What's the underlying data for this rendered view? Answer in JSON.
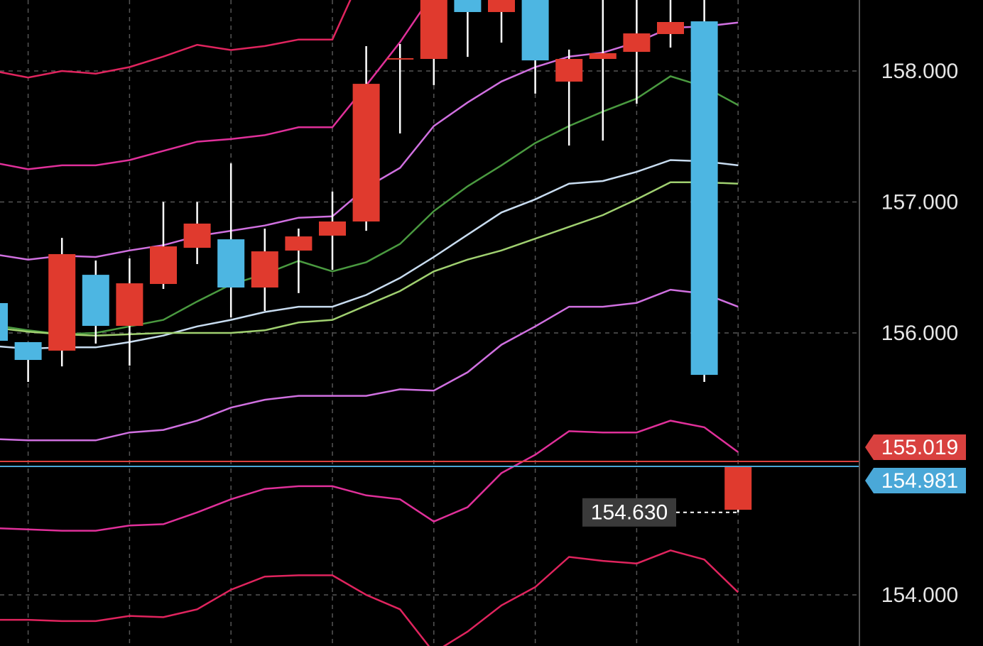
{
  "chart_data": {
    "type": "candlestick",
    "ylim": [
      153.61,
      158.542
    ],
    "yticks": [
      {
        "value": 154,
        "label": "154.000"
      },
      {
        "value": 156,
        "label": "156.000"
      },
      {
        "value": 157,
        "label": "157.000"
      },
      {
        "value": 158,
        "label": "158.000"
      }
    ],
    "grid": true,
    "up_color": "#e03a2e",
    "down_color": "#4db6e2",
    "open": [
      156.228,
      155.93,
      155.865,
      156.444,
      156.054,
      156.374,
      156.65,
      156.715,
      156.347,
      156.629,
      156.743,
      156.851,
      158.098,
      158.092,
      158.6,
      158.45,
      158.6,
      157.919,
      158.092,
      158.146,
      158.282,
      158.379,
      154.65
    ],
    "high": [
      156.25,
      155.93,
      156.726,
      156.553,
      156.569,
      157.0,
      157.0,
      157.295,
      156.797,
      156.797,
      157.079,
      158.19,
      158.206,
      158.7,
      158.7,
      158.65,
      158.65,
      158.163,
      158.6,
      158.6,
      158.6,
      158.6,
      154.981
    ],
    "low": [
      155.92,
      155.626,
      155.745,
      155.919,
      155.751,
      156.336,
      156.526,
      156.119,
      156.168,
      156.304,
      156.482,
      156.78,
      157.523,
      157.892,
      158.108,
      158.217,
      157.827,
      157.431,
      157.469,
      157.751,
      158.179,
      155.626,
      154.63
    ],
    "close": [
      155.94,
      155.794,
      156.602,
      156.054,
      156.379,
      156.661,
      156.835,
      156.347,
      156.623,
      156.737,
      156.851,
      157.902,
      158.098,
      158.6,
      158.45,
      158.6,
      158.081,
      158.092,
      158.136,
      158.287,
      158.374,
      155.68,
      154.981
    ],
    "lines": [
      {
        "color": "#e0245e",
        "values": [
          158.0,
          157.95,
          158.0,
          157.98,
          158.03,
          158.11,
          158.2,
          158.16,
          158.19,
          158.24,
          158.24,
          158.81,
          null,
          null,
          null,
          null,
          null,
          null,
          null,
          null,
          null,
          null,
          null
        ]
      },
      {
        "color": "#e0309a",
        "values": [
          157.3,
          157.25,
          157.28,
          157.28,
          157.32,
          157.39,
          157.46,
          157.48,
          157.51,
          157.57,
          157.57,
          157.89,
          158.22,
          158.6,
          null,
          null,
          null,
          null,
          null,
          null,
          null,
          null,
          null
        ]
      },
      {
        "color": "#d070e0",
        "values": [
          156.6,
          156.56,
          156.59,
          156.58,
          156.63,
          156.67,
          156.74,
          156.78,
          156.82,
          156.88,
          156.89,
          157.11,
          157.26,
          157.58,
          157.76,
          157.92,
          158.03,
          158.11,
          158.14,
          158.22,
          158.33,
          158.34,
          158.37
        ]
      },
      {
        "color": "#4a9a40",
        "values": [
          156.06,
          156.02,
          155.99,
          156.0,
          156.05,
          156.1,
          156.24,
          156.37,
          156.45,
          156.55,
          156.47,
          156.54,
          156.68,
          156.93,
          157.12,
          157.28,
          157.45,
          157.58,
          157.69,
          157.79,
          157.96,
          157.88,
          157.74
        ]
      },
      {
        "color": "#c8dcf0",
        "values": [
          155.9,
          155.88,
          155.89,
          155.89,
          155.93,
          155.98,
          156.05,
          156.1,
          156.16,
          156.2,
          156.2,
          156.29,
          156.42,
          156.58,
          156.75,
          156.92,
          157.02,
          157.14,
          157.16,
          157.23,
          157.32,
          157.31,
          157.28
        ]
      },
      {
        "color": "#a0d070",
        "values": [
          156.04,
          156.01,
          155.99,
          155.98,
          155.99,
          156.0,
          156.0,
          156.0,
          156.02,
          156.08,
          156.1,
          156.21,
          156.32,
          156.47,
          156.56,
          156.63,
          156.72,
          156.81,
          156.9,
          157.02,
          157.15,
          157.15,
          157.14
        ]
      },
      {
        "color": "#d070e0",
        "values": [
          155.19,
          155.18,
          155.18,
          155.18,
          155.24,
          155.26,
          155.33,
          155.43,
          155.49,
          155.52,
          155.52,
          155.52,
          155.57,
          155.56,
          155.7,
          155.91,
          156.05,
          156.2,
          156.2,
          156.23,
          156.33,
          156.3,
          156.2
        ]
      },
      {
        "color": "#e0309a",
        "values": [
          154.51,
          154.5,
          154.49,
          154.49,
          154.53,
          154.54,
          154.63,
          154.73,
          154.81,
          154.83,
          154.83,
          154.76,
          154.73,
          154.56,
          154.67,
          154.93,
          155.07,
          155.25,
          155.24,
          155.24,
          155.33,
          155.28,
          155.09
        ]
      },
      {
        "color": "#e0245e",
        "values": [
          153.81,
          153.81,
          153.8,
          153.8,
          153.84,
          153.83,
          153.89,
          154.04,
          154.14,
          154.15,
          154.15,
          154.0,
          153.89,
          153.56,
          153.72,
          153.92,
          154.06,
          154.29,
          154.26,
          154.24,
          154.34,
          154.27,
          154.02
        ]
      }
    ],
    "price_lines": [
      {
        "value": 155.019,
        "label": "155.019",
        "color": "#d9413f"
      },
      {
        "value": 154.981,
        "label": "154.981",
        "color": "#4aa8d8"
      }
    ],
    "low_marker": {
      "value": 154.63,
      "label": "154.630"
    }
  }
}
